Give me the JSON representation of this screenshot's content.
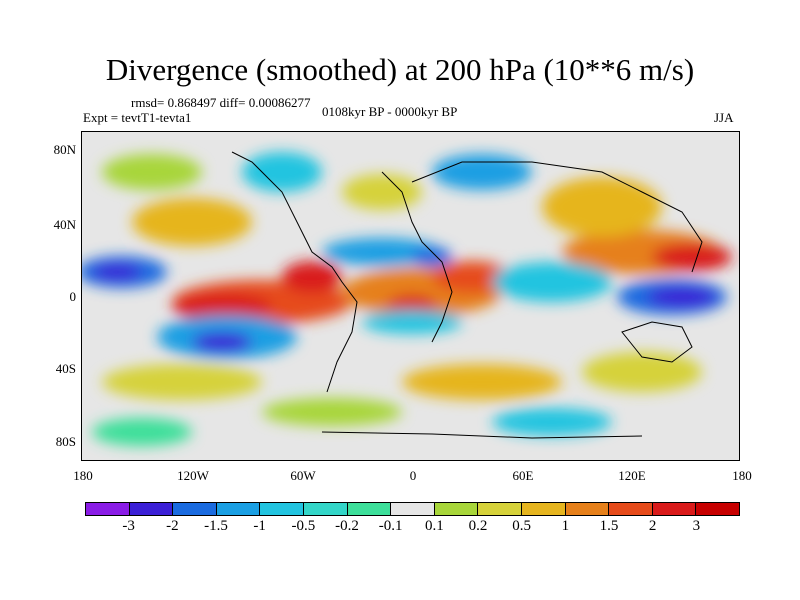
{
  "title": "Divergence (smoothed) at 200 hPa (10**6 m/s)",
  "stats": "rmsd= 0.868497 diff= 0.00086277",
  "experiment": "Expt = tevtT1-tevta1",
  "period": "0108kyr BP - 0000kyr BP",
  "season": "JJA",
  "lat_labels": [
    "80N",
    "40N",
    "0",
    "40S",
    "80S"
  ],
  "lon_labels": [
    "180",
    "120W",
    "60W",
    "0",
    "60E",
    "120E",
    "180"
  ],
  "colorbar": {
    "labels": [
      "-3",
      "-2",
      "-1.5",
      "-1",
      "-0.5",
      "-0.2",
      "-0.1",
      "0.1",
      "0.2",
      "0.5",
      "1",
      "1.5",
      "2",
      "3"
    ],
    "colors": [
      "#8a1ce6",
      "#3b1fd6",
      "#1a6be0",
      "#1a9fe3",
      "#22c4e0",
      "#33d6c8",
      "#3ddf9a",
      "#e6e6e6",
      "#a8d63a",
      "#d6d23a",
      "#e6b51f",
      "#e6801a",
      "#e64b1a",
      "#d91a1a",
      "#c70000"
    ]
  }
}
